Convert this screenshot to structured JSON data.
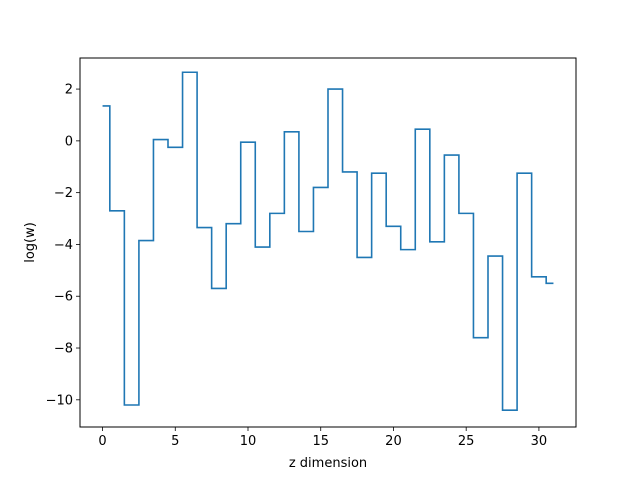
{
  "chart_data": {
    "type": "line",
    "drawstyle": "steps-mid",
    "title": "",
    "xlabel": "z dimension",
    "ylabel": "log(w)",
    "xlim": [
      -1.55,
      32.55
    ],
    "ylim": [
      -11.05,
      3.2
    ],
    "xticks": [
      0,
      5,
      10,
      15,
      20,
      25,
      30
    ],
    "yticks": [
      2,
      0,
      -2,
      -4,
      -6,
      -8,
      -10
    ],
    "ytick_labels": [
      "2",
      "0",
      "−2",
      "−4",
      "−6",
      "−8",
      "−10"
    ],
    "grid": false,
    "legend": "none",
    "series": [
      {
        "color": "#1f77b4",
        "x": [
          0,
          1,
          2,
          3,
          4,
          5,
          6,
          7,
          8,
          9,
          10,
          11,
          12,
          13,
          14,
          15,
          16,
          17,
          18,
          19,
          20,
          21,
          22,
          23,
          24,
          25,
          26,
          27,
          28,
          29,
          30,
          31
        ],
        "y": [
          1.35,
          -2.7,
          -10.2,
          -3.85,
          0.05,
          -0.25,
          2.65,
          -3.35,
          -5.7,
          -3.2,
          -0.05,
          -4.1,
          -2.8,
          0.35,
          -3.5,
          -1.8,
          2.0,
          -1.2,
          -4.5,
          -1.25,
          -3.3,
          -4.2,
          0.45,
          -3.9,
          -0.55,
          -2.8,
          -7.6,
          -4.45,
          -10.4,
          -1.25,
          -5.25,
          -5.5
        ]
      }
    ]
  }
}
